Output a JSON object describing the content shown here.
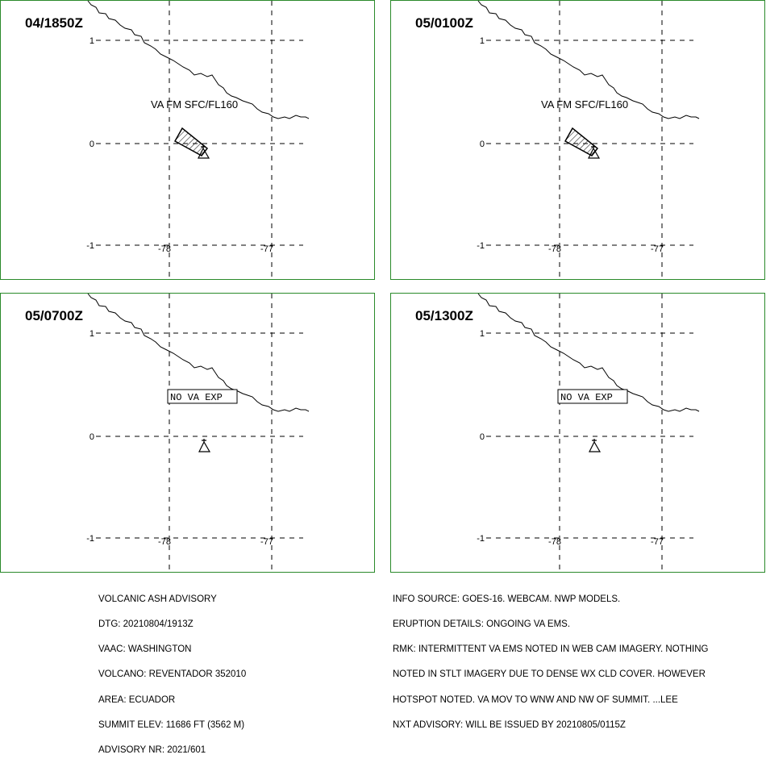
{
  "panels": [
    {
      "time": "04/1850Z",
      "va_label": "VA FM SFC/FL160",
      "no_va_label": "",
      "ash_polygon": true
    },
    {
      "time": "05/0100Z",
      "va_label": "VA FM SFC/FL160",
      "no_va_label": "",
      "ash_polygon": true
    },
    {
      "time": "05/0700Z",
      "va_label": "",
      "no_va_label": "NO VA EXP",
      "ash_polygon": false
    },
    {
      "time": "05/1300Z",
      "va_label": "",
      "no_va_label": "NO VA EXP",
      "ash_polygon": false
    }
  ],
  "axes": {
    "lat_labels": [
      "1",
      "0",
      "-1"
    ],
    "lon_labels": [
      "-78",
      "-77"
    ]
  },
  "advisory_left": [
    "VOLCANIC ASH ADVISORY",
    "DTG: 20210804/1913Z",
    "VAAC: WASHINGTON",
    "VOLCANO: REVENTADOR 352010",
    "AREA: ECUADOR",
    "SUMMIT ELEV: 11686 FT (3562 M)",
    "ADVISORY NR: 2021/601"
  ],
  "advisory_right": [
    "INFO SOURCE: GOES-16. WEBCAM. NWP MODELS.",
    "ERUPTION DETAILS: ONGOING VA EMS.",
    "RMK: INTERMITTENT VA EMS NOTED IN WEB CAM IMAGERY. NOTHING",
    "NOTED IN STLT IMAGERY DUE TO DENSE WX CLD COVER. HOWEVER",
    "HOTSPOT NOTED. VA MOV TO WNW AND NW OF SUMMIT. ...LEE",
    "NXT ADVISORY: WILL BE ISSUED BY 20210805/0115Z"
  ],
  "colors": {
    "panel_border": "#2a8a2a",
    "lines": "#000000"
  }
}
